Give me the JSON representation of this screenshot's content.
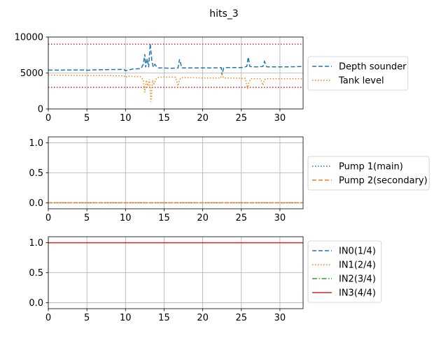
{
  "figure": {
    "title": "hits_3"
  },
  "chart_data": [
    {
      "type": "line",
      "xlim": [
        0,
        33
      ],
      "ylim": [
        0,
        10000
      ],
      "xticks": [
        0,
        5,
        10,
        15,
        20,
        25,
        30
      ],
      "yticks": [
        0,
        5000,
        10000
      ],
      "grid": true,
      "legend_position": "right",
      "hlines": [
        {
          "y": 9000,
          "color": "#d62728",
          "style": "dotted"
        },
        {
          "y": 3000,
          "color": "#d62728",
          "style": "dotted"
        }
      ],
      "series": [
        {
          "name": "Depth sounder",
          "color": "#1f77b4",
          "style": "dashed",
          "x": [
            0,
            4.5,
            5,
            6,
            8,
            9.8,
            10,
            10.3,
            11,
            12,
            12.3,
            12.5,
            12.6,
            12.8,
            13.0,
            13.2,
            13.4,
            13.6,
            13.8,
            14.0,
            14.3,
            15,
            16,
            16.8,
            17.0,
            17.3,
            18,
            20,
            22,
            22.4,
            22.5,
            22.7,
            23,
            25,
            25.7,
            25.9,
            26.1,
            26.5,
            27,
            27.8,
            28.0,
            28.3,
            29,
            31,
            33
          ],
          "y": [
            5400,
            5420,
            5380,
            5440,
            5480,
            5500,
            5300,
            5400,
            5560,
            5600,
            6200,
            7600,
            5800,
            7000,
            5800,
            9100,
            6800,
            5800,
            6200,
            5900,
            5700,
            5700,
            5650,
            5700,
            6900,
            5700,
            5700,
            5700,
            5720,
            5750,
            4700,
            5700,
            5750,
            5750,
            5900,
            7200,
            5900,
            5850,
            5850,
            5900,
            6600,
            5850,
            5850,
            5850,
            5900
          ]
        },
        {
          "name": "Tank level",
          "color": "#ff7f0e",
          "style": "dotted",
          "x": [
            0,
            5,
            9.8,
            10,
            10.3,
            11,
            12,
            12.3,
            12.5,
            12.7,
            12.9,
            13.1,
            13.3,
            13.5,
            13.7,
            14.0,
            14.3,
            15,
            16.5,
            16.8,
            17.0,
            17.3,
            18,
            20,
            22.3,
            22.5,
            22.7,
            23,
            25.5,
            25.8,
            26.0,
            26.3,
            27.5,
            27.8,
            28.0,
            28.3,
            30,
            33
          ],
          "y": [
            4700,
            4650,
            4600,
            4400,
            4550,
            4520,
            4480,
            4000,
            2300,
            4000,
            3200,
            4100,
            1000,
            4000,
            3500,
            4200,
            4400,
            4450,
            4400,
            3200,
            4100,
            4350,
            4350,
            4300,
            4300,
            4800,
            4300,
            4300,
            4250,
            2800,
            3800,
            4200,
            4200,
            3300,
            4100,
            4200,
            4200,
            4200
          ]
        }
      ]
    },
    {
      "type": "line",
      "xlim": [
        0,
        33
      ],
      "ylim": [
        -0.1,
        1.1
      ],
      "xticks": [
        0,
        5,
        10,
        15,
        20,
        25,
        30
      ],
      "yticks": [
        0.0,
        0.5,
        1.0
      ],
      "ytick_labels": [
        "0.0",
        "0.5",
        "1.0"
      ],
      "grid": true,
      "legend_position": "right",
      "series": [
        {
          "name": "Pump 1(main)",
          "color": "#1f77b4",
          "style": "dotted",
          "x": [
            0,
            33
          ],
          "y": [
            0,
            0
          ]
        },
        {
          "name": "Pump 2(secondary)",
          "color": "#ff7f0e",
          "style": "dashed",
          "x": [
            0,
            33
          ],
          "y": [
            0,
            0
          ]
        }
      ]
    },
    {
      "type": "line",
      "xlim": [
        0,
        33
      ],
      "ylim": [
        -0.1,
        1.1
      ],
      "xticks": [
        0,
        5,
        10,
        15,
        20,
        25,
        30
      ],
      "yticks": [
        0.0,
        0.5,
        1.0
      ],
      "ytick_labels": [
        "0.0",
        "0.5",
        "1.0"
      ],
      "grid": true,
      "legend_position": "right",
      "series": [
        {
          "name": "IN0(1/4)",
          "color": "#1f77b4",
          "style": "dashed",
          "x": [],
          "y": []
        },
        {
          "name": "IN1(2/4)",
          "color": "#ff7f0e",
          "style": "dotted",
          "x": [],
          "y": []
        },
        {
          "name": "IN2(3/4)",
          "color": "#2ca02c",
          "style": "dashdot",
          "x": [],
          "y": []
        },
        {
          "name": "IN3(4/4)",
          "color": "#d62728",
          "style": "solid",
          "x": [
            0,
            33
          ],
          "y": [
            1,
            1
          ]
        }
      ]
    }
  ]
}
